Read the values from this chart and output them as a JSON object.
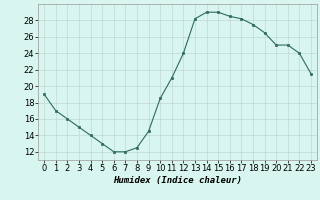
{
  "x": [
    0,
    1,
    2,
    3,
    4,
    5,
    6,
    7,
    8,
    9,
    10,
    11,
    12,
    13,
    14,
    15,
    16,
    17,
    18,
    19,
    20,
    21,
    22,
    23
  ],
  "y": [
    19,
    17,
    16,
    15,
    14,
    13,
    12,
    12,
    12.5,
    14.5,
    18.5,
    21,
    24,
    28.2,
    29,
    29,
    28.5,
    28.2,
    27.5,
    26.5,
    25,
    25,
    24,
    21.5
  ],
  "line_color": "#2e6b5e",
  "marker": "s",
  "marker_size": 2.0,
  "bg_color": "#d8f5f0",
  "grid_color": "#c0d8d2",
  "xlabel": "Humidex (Indice chaleur)",
  "xlim": [
    -0.5,
    23.5
  ],
  "ylim": [
    11,
    30
  ],
  "yticks": [
    12,
    14,
    16,
    18,
    20,
    22,
    24,
    26,
    28
  ],
  "xticks": [
    0,
    1,
    2,
    3,
    4,
    5,
    6,
    7,
    8,
    9,
    10,
    11,
    12,
    13,
    14,
    15,
    16,
    17,
    18,
    19,
    20,
    21,
    22,
    23
  ],
  "xlabel_fontsize": 6.5,
  "tick_fontsize": 6.0
}
